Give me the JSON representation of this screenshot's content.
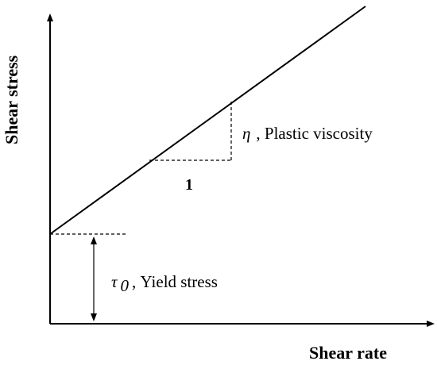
{
  "axes": {
    "x_label": "Shear rate",
    "y_label": "Shear stress"
  },
  "annotations": {
    "slope_symbol": "η",
    "slope_text": ", Plastic viscosity",
    "slope_run": "1",
    "yield_symbol": "τ",
    "yield_subscript": "0",
    "yield_text": ", Yield stress"
  }
}
